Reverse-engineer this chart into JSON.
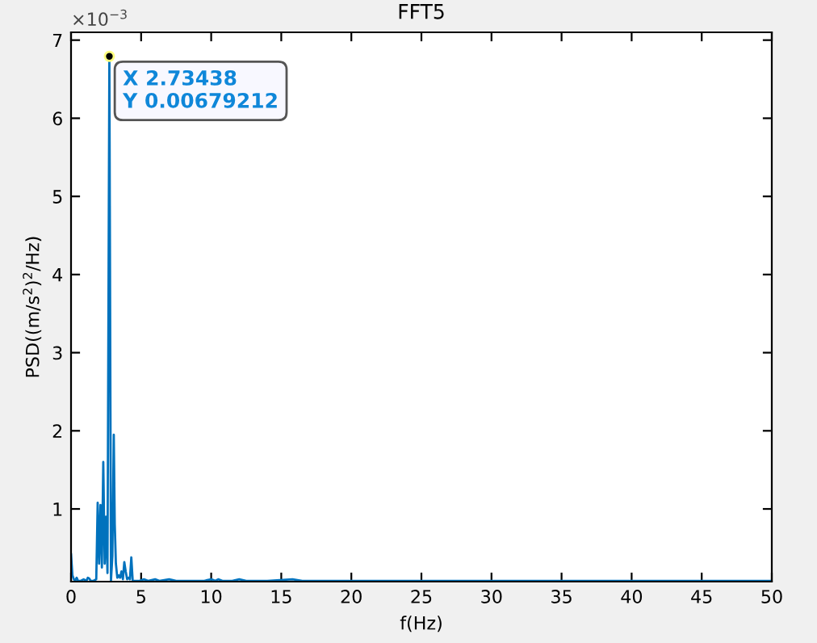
{
  "chart_data": {
    "type": "line",
    "title": "FFT5",
    "xlabel": "f(Hz)",
    "ylabel": "PSD((m/s$^{2}$)$^{2}$/Hz)",
    "x": [
      0,
      0.1,
      0.2,
      0.3,
      0.4,
      0.5,
      0.7,
      0.9,
      1.1,
      1.2,
      1.3,
      1.4,
      1.6,
      1.8,
      1.9,
      2.0,
      2.1,
      2.2,
      2.3,
      2.4,
      2.5,
      2.6,
      2.73438,
      2.85,
      2.95,
      3.05,
      3.12,
      3.2,
      3.3,
      3.4,
      3.5,
      3.6,
      3.7,
      3.8,
      3.9,
      4.0,
      4.1,
      4.2,
      4.3,
      4.4,
      4.6,
      4.9,
      5.2,
      5.5,
      6.0,
      6.3,
      7.0,
      7.5,
      8.5,
      9.5,
      10.0,
      10.3,
      10.5,
      10.8,
      11.5,
      12.0,
      12.5,
      14.0,
      15.8,
      16.5,
      20,
      30,
      40,
      50
    ],
    "series": [
      {
        "color": "#0072bd",
        "values": [
          0.42,
          0.15,
          0.1,
          0.08,
          0.12,
          0.08,
          0.08,
          0.1,
          0.08,
          0.12,
          0.11,
          0.08,
          0.08,
          0.1,
          1.08,
          0.3,
          1.05,
          0.25,
          1.6,
          0.3,
          0.9,
          0.18,
          6.79212,
          0.08,
          0.4,
          1.95,
          0.8,
          0.3,
          0.12,
          0.15,
          0.12,
          0.2,
          0.1,
          0.32,
          0.2,
          0.1,
          0.12,
          0.1,
          0.38,
          0.08,
          0.08,
          0.08,
          0.1,
          0.08,
          0.1,
          0.08,
          0.1,
          0.08,
          0.08,
          0.08,
          0.1,
          0.08,
          0.1,
          0.08,
          0.08,
          0.1,
          0.08,
          0.08,
          0.1,
          0.08,
          0.08,
          0.08,
          0.08,
          0.08
        ]
      }
    ],
    "xlim": [
      0,
      50
    ],
    "ylim": [
      0.07,
      7.1
    ],
    "xticks": [
      0,
      5,
      10,
      15,
      20,
      25,
      30,
      35,
      40,
      45,
      50
    ],
    "yticks": [
      1,
      2,
      3,
      4,
      5,
      6,
      7
    ],
    "annotations": [
      "×10$^{−3}$",
      {
        "text": "X 2.73438\nY 0.00679212",
        "x": 2.73438,
        "y": 6.79212
      }
    ],
    "grid": false,
    "legend": false
  }
}
